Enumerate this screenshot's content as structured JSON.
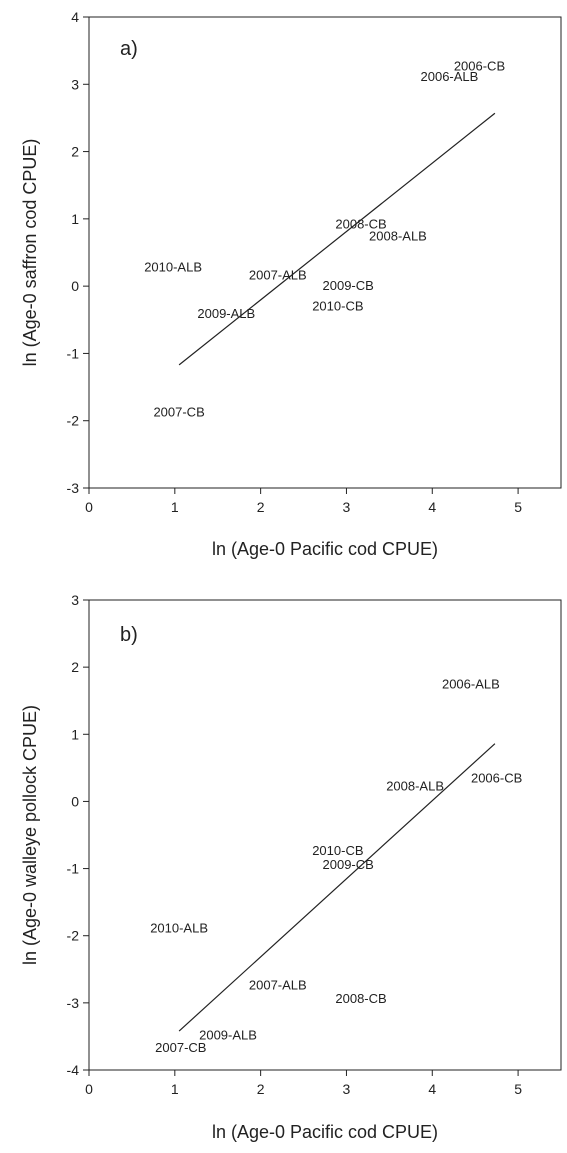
{
  "chart_data": [
    {
      "type": "scatter",
      "panel_label": "a)",
      "xlabel": "ln (Age-0 Pacific cod CPUE)",
      "ylabel": "ln (Age-0 saffron cod CPUE)",
      "xlim": [
        0,
        5.5
      ],
      "ylim": [
        -3,
        4
      ],
      "xticks": [
        0,
        1,
        2,
        3,
        4,
        5
      ],
      "yticks": [
        -3,
        -2,
        -1,
        0,
        1,
        2,
        3,
        4
      ],
      "grid": false,
      "marker": "text-label",
      "points": [
        {
          "label": "2006-CB",
          "x": 4.55,
          "y": 3.28
        },
        {
          "label": "2006-ALB",
          "x": 4.2,
          "y": 3.12
        },
        {
          "label": "2008-CB",
          "x": 3.17,
          "y": 0.93
        },
        {
          "label": "2008-ALB",
          "x": 3.6,
          "y": 0.75
        },
        {
          "label": "2010-ALB",
          "x": 0.98,
          "y": 0.29
        },
        {
          "label": "2007-ALB",
          "x": 2.2,
          "y": 0.17
        },
        {
          "label": "2009-CB",
          "x": 3.02,
          "y": 0.02
        },
        {
          "label": "2009-ALB",
          "x": 1.6,
          "y": -0.4
        },
        {
          "label": "2010-CB",
          "x": 2.9,
          "y": -0.29
        },
        {
          "label": "2007-CB",
          "x": 1.05,
          "y": -1.86
        }
      ],
      "fit_line": {
        "x": [
          1.05,
          4.73
        ],
        "y": [
          -1.17,
          2.57
        ]
      }
    },
    {
      "type": "scatter",
      "panel_label": "b)",
      "xlabel": "ln (Age-0 Pacific cod CPUE)",
      "ylabel": "ln (Age-0 walleye pollock CPUE)",
      "xlim": [
        0,
        5.5
      ],
      "ylim": [
        -4,
        3
      ],
      "xticks": [
        0,
        1,
        2,
        3,
        4,
        5
      ],
      "yticks": [
        -4,
        -3,
        -2,
        -1,
        0,
        1,
        2,
        3
      ],
      "grid": false,
      "marker": "text-label",
      "points": [
        {
          "label": "2006-ALB",
          "x": 4.45,
          "y": 1.76
        },
        {
          "label": "2006-CB",
          "x": 4.75,
          "y": 0.36
        },
        {
          "label": "2008-ALB",
          "x": 3.8,
          "y": 0.24
        },
        {
          "label": "2010-CB",
          "x": 2.9,
          "y": -0.72
        },
        {
          "label": "2009-CB",
          "x": 3.02,
          "y": -0.93
        },
        {
          "label": "2010-ALB",
          "x": 1.05,
          "y": -1.88
        },
        {
          "label": "2007-ALB",
          "x": 2.2,
          "y": -2.73
        },
        {
          "label": "2008-CB",
          "x": 3.17,
          "y": -2.93
        },
        {
          "label": "2009-ALB",
          "x": 1.62,
          "y": -3.47
        },
        {
          "label": "2007-CB",
          "x": 1.07,
          "y": -3.66
        }
      ],
      "fit_line": {
        "x": [
          1.05,
          4.73
        ],
        "y": [
          -3.42,
          0.86
        ]
      }
    }
  ]
}
